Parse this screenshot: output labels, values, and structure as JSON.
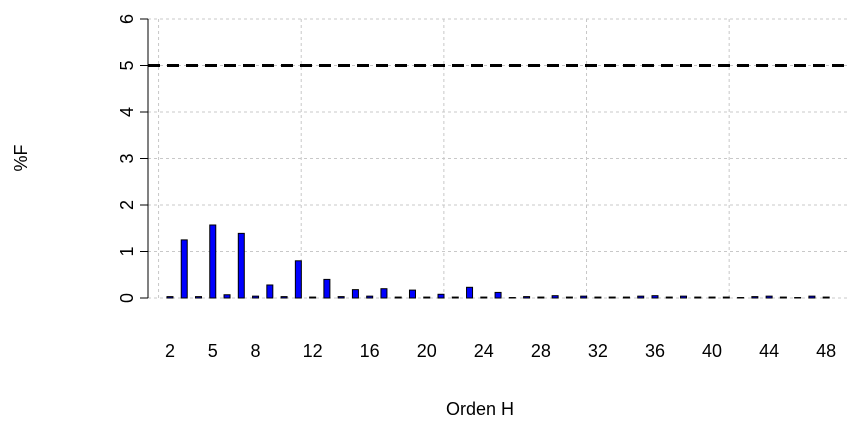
{
  "chart_data": {
    "type": "bar",
    "x_label": "Orden H",
    "y_label": "%F",
    "x": [
      2,
      3,
      4,
      5,
      6,
      7,
      8,
      9,
      10,
      11,
      12,
      13,
      14,
      15,
      16,
      17,
      18,
      19,
      20,
      21,
      22,
      23,
      24,
      25,
      26,
      27,
      28,
      29,
      30,
      31,
      32,
      33,
      34,
      35,
      36,
      37,
      38,
      39,
      40,
      41,
      42,
      43,
      44,
      45,
      46,
      47,
      48
    ],
    "values": [
      0.03,
      1.25,
      0.03,
      1.57,
      0.07,
      1.39,
      0.04,
      0.28,
      0.03,
      0.8,
      0.02,
      0.4,
      0.03,
      0.18,
      0.04,
      0.2,
      0.02,
      0.17,
      0.02,
      0.08,
      0.02,
      0.23,
      0.02,
      0.12,
      0.01,
      0.03,
      0.02,
      0.05,
      0.02,
      0.04,
      0.02,
      0.02,
      0.02,
      0.04,
      0.05,
      0.02,
      0.04,
      0.02,
      0.02,
      0.02,
      0.01,
      0.03,
      0.04,
      0.02,
      0.01,
      0.04,
      0.02
    ],
    "color": "#0000ff",
    "xlim": [
      0.46,
      49.6
    ],
    "xticks": [
      2,
      5,
      8,
      12,
      16,
      20,
      24,
      28,
      32,
      36,
      40,
      44,
      48
    ],
    "ylim": [
      0,
      6
    ],
    "yticks": [
      0,
      1,
      2,
      3,
      4,
      5,
      6
    ],
    "xgrid": [
      1.2,
      11.2,
      21.2,
      31.2,
      41.2
    ],
    "grid": true,
    "threshold": 5
  }
}
